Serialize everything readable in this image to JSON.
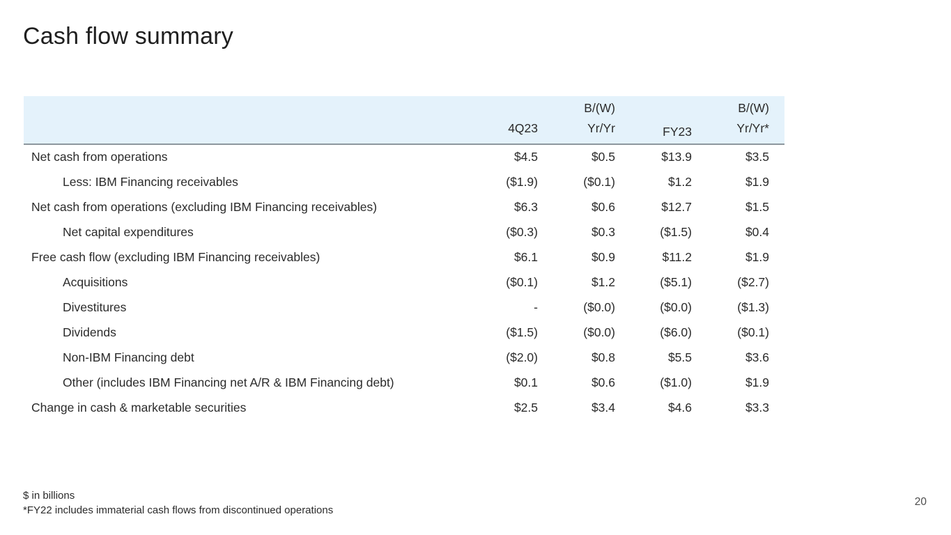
{
  "slide": {
    "title": "Cash flow summary",
    "page_number": "20"
  },
  "colors": {
    "header_background": "#e4f2fb",
    "header_border": "#8d979e",
    "text": "#2b2b2b"
  },
  "table": {
    "headers": [
      {
        "line1": "",
        "line2": "4Q23"
      },
      {
        "line1": "B/(W)",
        "line2": "Yr/Yr"
      },
      {
        "line1": "",
        "line2": "FY23"
      },
      {
        "line1": "B/(W)",
        "line2": "Yr/Yr*"
      }
    ],
    "rows": [
      {
        "label": "Net cash from operations",
        "indent": false,
        "values": [
          "$4.5",
          "$0.5",
          "$13.9",
          "$3.5"
        ]
      },
      {
        "label": "Less: IBM Financing receivables",
        "indent": true,
        "values": [
          "($1.9)",
          "($0.1)",
          "$1.2",
          "$1.9"
        ]
      },
      {
        "label": "Net cash from operations (excluding IBM Financing receivables)",
        "indent": false,
        "values": [
          "$6.3",
          "$0.6",
          "$12.7",
          "$1.5"
        ]
      },
      {
        "label": "Net capital expenditures",
        "indent": true,
        "values": [
          "($0.3)",
          "$0.3",
          "($1.5)",
          "$0.4"
        ]
      },
      {
        "label": "Free cash flow (excluding IBM Financing receivables)",
        "indent": false,
        "values": [
          "$6.1",
          "$0.9",
          "$11.2",
          "$1.9"
        ]
      },
      {
        "label": "Acquisitions",
        "indent": true,
        "values": [
          "($0.1)",
          "$1.2",
          "($5.1)",
          "($2.7)"
        ]
      },
      {
        "label": "Divestitures",
        "indent": true,
        "values": [
          "-",
          "($0.0)",
          "($0.0)",
          "($1.3)"
        ]
      },
      {
        "label": "Dividends",
        "indent": true,
        "values": [
          "($1.5)",
          "($0.0)",
          "($6.0)",
          "($0.1)"
        ]
      },
      {
        "label": "Non-IBM Financing debt",
        "indent": true,
        "values": [
          "($2.0)",
          "$0.8",
          "$5.5",
          "$3.6"
        ]
      },
      {
        "label": "Other (includes IBM Financing net A/R & IBM Financing debt)",
        "indent": true,
        "values": [
          "$0.1",
          "$0.6",
          "($1.0)",
          "$1.9"
        ]
      },
      {
        "label": "Change in cash & marketable securities",
        "indent": false,
        "values": [
          "$2.5",
          "$3.4",
          "$4.6",
          "$3.3"
        ]
      }
    ]
  },
  "footnotes": [
    "$ in billions",
    "*FY22 includes immaterial cash flows from discontinued operations"
  ]
}
